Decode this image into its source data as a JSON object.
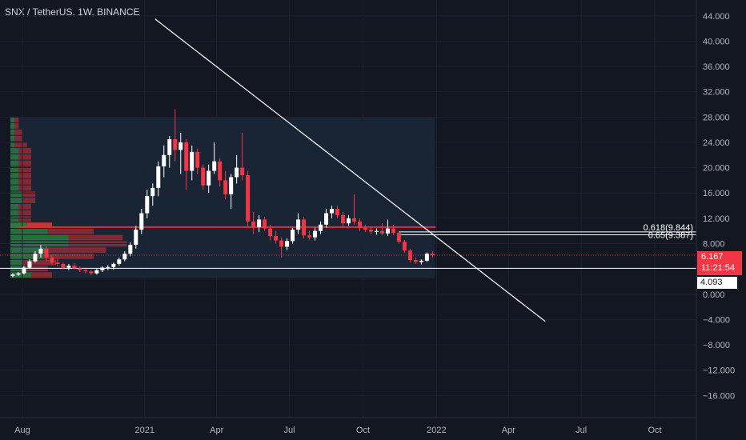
{
  "title": "SNX / TetherUS, 1W, BINANCE",
  "colors": {
    "background": "#131722",
    "up": "#ffffff",
    "down": "#f23645",
    "vp_up": "#2f7d43",
    "vp_down": "#9e2b37"
  },
  "chart_data": {
    "type": "candlestick",
    "symbol": "SNX / TetherUS",
    "interval": "1W",
    "exchange": "BINANCE",
    "y_axis": {
      "ticks": [
        "44.000",
        "40.000",
        "36.000",
        "32.000",
        "28.000",
        "24.000",
        "20.000",
        "16.000",
        "12.000",
        "8.000",
        "4.000",
        "0.000",
        "−4.000",
        "−8.000",
        "−12.000",
        "−16.000"
      ],
      "range": [
        -19.5,
        46.5
      ]
    },
    "x_axis": {
      "ticks": [
        {
          "label": "Aug",
          "date": "2020-08-01"
        },
        {
          "label": "2021",
          "date": "2021-01-01"
        },
        {
          "label": "Apr",
          "date": "2021-04-01"
        },
        {
          "label": "Jul",
          "date": "2021-07-01"
        },
        {
          "label": "Oct",
          "date": "2021-10-01"
        },
        {
          "label": "2022",
          "date": "2022-01-01"
        },
        {
          "label": "Apr",
          "date": "2022-04-01"
        },
        {
          "label": "Jul",
          "date": "2022-07-01"
        },
        {
          "label": "Oct",
          "date": "2022-10-01"
        }
      ],
      "range": [
        "2020-07-04",
        "2022-11-22"
      ]
    },
    "candles": [
      [
        "2020-07-20",
        2.9,
        3.3,
        2.7,
        3.1
      ],
      [
        "2020-07-27",
        3.1,
        3.5,
        2.9,
        3.3
      ],
      [
        "2020-08-03",
        3.3,
        4.5,
        3.1,
        4.2
      ],
      [
        "2020-08-10",
        4.2,
        5.5,
        4.0,
        5.2
      ],
      [
        "2020-08-17",
        5.2,
        6.8,
        5.0,
        6.4
      ],
      [
        "2020-08-24",
        6.4,
        7.8,
        5.8,
        7.2
      ],
      [
        "2020-08-31",
        7.2,
        7.6,
        5.2,
        5.8
      ],
      [
        "2020-09-07",
        5.8,
        6.2,
        4.6,
        5.0
      ],
      [
        "2020-09-14",
        5.0,
        5.6,
        4.4,
        4.8
      ],
      [
        "2020-09-21",
        4.8,
        5.0,
        3.9,
        4.2
      ],
      [
        "2020-09-28",
        4.2,
        4.8,
        3.8,
        4.5
      ],
      [
        "2020-10-05",
        4.5,
        4.9,
        3.9,
        4.1
      ],
      [
        "2020-10-12",
        4.1,
        4.4,
        3.5,
        3.8
      ],
      [
        "2020-10-19",
        3.8,
        4.0,
        3.3,
        3.6
      ],
      [
        "2020-10-26",
        3.6,
        3.8,
        3.0,
        3.3
      ],
      [
        "2020-11-02",
        3.3,
        4.0,
        3.1,
        3.8
      ],
      [
        "2020-11-09",
        3.8,
        4.4,
        3.5,
        4.2
      ],
      [
        "2020-11-16",
        4.2,
        4.6,
        3.8,
        4.3
      ],
      [
        "2020-11-23",
        4.3,
        5.0,
        3.9,
        4.8
      ],
      [
        "2020-11-30",
        4.8,
        5.8,
        4.5,
        5.5
      ],
      [
        "2020-12-07",
        5.5,
        6.8,
        5.2,
        6.4
      ],
      [
        "2020-12-14",
        6.4,
        8.2,
        6.0,
        7.8
      ],
      [
        "2020-12-21",
        7.8,
        10.8,
        7.2,
        10.2
      ],
      [
        "2020-12-28",
        10.2,
        13.5,
        9.5,
        12.8
      ],
      [
        "2021-01-04",
        12.8,
        16.5,
        12.0,
        15.5
      ],
      [
        "2021-01-11",
        15.5,
        17.5,
        14.0,
        16.8
      ],
      [
        "2021-01-18",
        16.8,
        21.0,
        15.5,
        20.2
      ],
      [
        "2021-01-25",
        20.2,
        23.5,
        18.5,
        22.0
      ],
      [
        "2021-02-01",
        22.0,
        25.0,
        20.0,
        24.5
      ],
      [
        "2021-02-08",
        24.5,
        29.2,
        21.0,
        22.8
      ],
      [
        "2021-02-15",
        22.8,
        25.5,
        19.0,
        24.0
      ],
      [
        "2021-02-22",
        24.0,
        24.5,
        16.5,
        19.5
      ],
      [
        "2021-03-01",
        19.5,
        23.5,
        18.0,
        22.5
      ],
      [
        "2021-03-08",
        22.5,
        23.0,
        19.0,
        20.0
      ],
      [
        "2021-03-15",
        20.0,
        20.5,
        16.5,
        17.2
      ],
      [
        "2021-03-22",
        17.2,
        20.5,
        16.0,
        19.5
      ],
      [
        "2021-03-29",
        19.5,
        24.0,
        19.0,
        21.0
      ],
      [
        "2021-04-05",
        21.0,
        21.5,
        17.0,
        18.0
      ],
      [
        "2021-04-12",
        18.0,
        19.5,
        15.0,
        15.8
      ],
      [
        "2021-04-19",
        15.8,
        19.0,
        13.5,
        18.5
      ],
      [
        "2021-04-26",
        18.5,
        22.0,
        17.5,
        20.0
      ],
      [
        "2021-05-03",
        20.0,
        25.5,
        18.0,
        18.8
      ],
      [
        "2021-05-10",
        18.8,
        19.5,
        10.5,
        11.5
      ],
      [
        "2021-05-17",
        11.5,
        13.0,
        9.5,
        10.6
      ],
      [
        "2021-05-24",
        10.6,
        12.5,
        9.8,
        11.8
      ],
      [
        "2021-05-31",
        11.8,
        12.2,
        10.0,
        10.4
      ],
      [
        "2021-06-07",
        10.4,
        11.0,
        8.5,
        9.2
      ],
      [
        "2021-06-14",
        9.2,
        10.0,
        8.0,
        8.5
      ],
      [
        "2021-06-21",
        8.5,
        9.0,
        5.8,
        7.5
      ],
      [
        "2021-06-28",
        7.5,
        8.8,
        7.0,
        8.4
      ],
      [
        "2021-07-05",
        8.4,
        10.5,
        8.0,
        10.2
      ],
      [
        "2021-07-12",
        10.2,
        12.8,
        9.5,
        11.8
      ],
      [
        "2021-07-19",
        11.8,
        12.2,
        8.8,
        9.3
      ],
      [
        "2021-07-26",
        9.3,
        10.0,
        8.6,
        9.0
      ],
      [
        "2021-08-02",
        9.0,
        10.5,
        8.5,
        10.0
      ],
      [
        "2021-08-09",
        10.0,
        11.5,
        9.5,
        11.0
      ],
      [
        "2021-08-16",
        11.0,
        13.5,
        10.5,
        12.8
      ],
      [
        "2021-08-23",
        12.8,
        14.0,
        12.0,
        13.5
      ],
      [
        "2021-08-30",
        13.5,
        14.0,
        12.0,
        12.5
      ],
      [
        "2021-09-06",
        12.5,
        13.0,
        10.5,
        11.2
      ],
      [
        "2021-09-13",
        11.2,
        12.5,
        10.8,
        12.0
      ],
      [
        "2021-09-20",
        12.0,
        15.8,
        11.0,
        11.5
      ],
      [
        "2021-09-27",
        11.5,
        12.0,
        10.0,
        10.5
      ],
      [
        "2021-10-04",
        10.5,
        11.0,
        9.8,
        10.2
      ],
      [
        "2021-10-11",
        10.2,
        10.6,
        9.5,
        9.9
      ],
      [
        "2021-10-18",
        9.9,
        10.4,
        9.4,
        10.0
      ],
      [
        "2021-10-25",
        10.0,
        11.2,
        9.3,
        9.6
      ],
      [
        "2021-11-01",
        9.6,
        11.8,
        9.2,
        10.4
      ],
      [
        "2021-11-08",
        10.4,
        11.0,
        9.3,
        9.7
      ],
      [
        "2021-11-15",
        9.7,
        10.0,
        8.0,
        8.3
      ],
      [
        "2021-11-22",
        8.3,
        8.6,
        6.5,
        6.9
      ],
      [
        "2021-11-29",
        6.9,
        7.2,
        5.0,
        5.4
      ],
      [
        "2021-12-06",
        5.4,
        5.8,
        4.8,
        5.1
      ],
      [
        "2021-12-13",
        5.1,
        5.5,
        4.7,
        5.3
      ],
      [
        "2021-12-20",
        5.3,
        6.6,
        5.1,
        6.4
      ],
      [
        "2021-12-27",
        6.4,
        6.8,
        5.8,
        6.167
      ]
    ],
    "volume_profile": {
      "price_range": [
        2.5,
        28.0
      ],
      "start_date": "2020-07-20",
      "end_date": "2021-12-27",
      "rows_up": [
        5,
        4,
        3,
        8,
        9,
        14,
        14,
        9,
        4,
        2,
        2,
        2,
        3,
        3,
        2,
        2,
        2,
        2,
        2,
        2,
        2,
        1,
        1,
        1,
        1,
        1
      ],
      "rows_down": [
        5,
        5,
        8,
        12,
        14,
        14,
        13,
        11,
        6,
        3,
        3,
        3,
        3,
        3,
        3,
        3,
        3,
        3,
        3,
        3,
        3,
        3,
        2,
        2,
        1,
        1
      ],
      "highlight_row": 8,
      "point_of_control": 10.6
    },
    "drawings": {
      "trend_line": [
        [
          "2021-01-14",
          43.5
        ],
        [
          "2022-05-17",
          -4.3
        ]
      ],
      "horizontal_line": 4.093,
      "poc_line": 10.6,
      "fib_levels": [
        {
          "label": "0.618(9.844)",
          "value": 9.844
        },
        {
          "label": "0.65(9.387)",
          "value": 9.387
        }
      ]
    },
    "last_price": {
      "value": "6.167",
      "countdown": "11:21:54"
    },
    "level_label": "4.093"
  }
}
